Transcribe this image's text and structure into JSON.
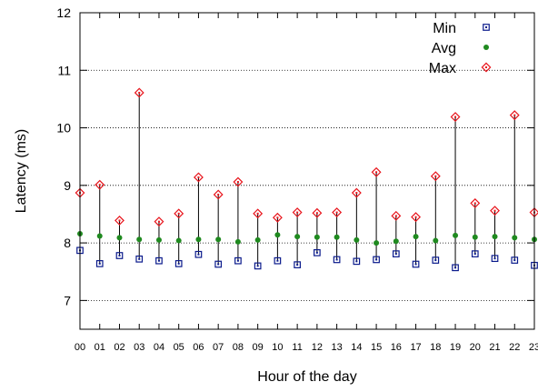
{
  "chart_data": {
    "type": "scatter",
    "xlabel": "Hour of the day",
    "ylabel": "Latency (ms)",
    "ylim": [
      6.5,
      12
    ],
    "yticks": [
      7,
      8,
      9,
      10,
      11,
      12
    ],
    "grid": "horizontal-dotted",
    "legend_position": "top-right",
    "categories": [
      "00",
      "01",
      "02",
      "03",
      "04",
      "05",
      "06",
      "07",
      "08",
      "09",
      "10",
      "11",
      "12",
      "13",
      "14",
      "15",
      "16",
      "17",
      "18",
      "19",
      "20",
      "21",
      "22",
      "23"
    ],
    "series": [
      {
        "name": "Min",
        "marker": "square",
        "color": "#0a1a8c",
        "values": [
          7.87,
          7.64,
          7.78,
          7.72,
          7.69,
          7.64,
          7.8,
          7.63,
          7.69,
          7.6,
          7.69,
          7.62,
          7.83,
          7.71,
          7.68,
          7.71,
          7.81,
          7.63,
          7.7,
          7.57,
          7.81,
          7.73,
          7.7,
          7.61
        ]
      },
      {
        "name": "Avg",
        "marker": "circle",
        "color": "#1f8a1f",
        "values": [
          8.16,
          8.12,
          8.09,
          8.06,
          8.05,
          8.04,
          8.06,
          8.06,
          8.02,
          8.05,
          8.14,
          8.11,
          8.1,
          8.1,
          8.05,
          8.0,
          8.03,
          8.11,
          8.04,
          8.13,
          8.1,
          8.11,
          8.09,
          8.06
        ]
      },
      {
        "name": "Max",
        "marker": "diamond",
        "color": "#e8141b",
        "values": [
          8.87,
          9.01,
          8.39,
          10.61,
          8.37,
          8.51,
          9.14,
          8.84,
          9.06,
          8.51,
          8.44,
          8.53,
          8.52,
          8.53,
          8.87,
          9.23,
          8.47,
          8.45,
          9.16,
          10.19,
          8.69,
          8.56,
          10.22,
          8.53
        ]
      }
    ]
  }
}
